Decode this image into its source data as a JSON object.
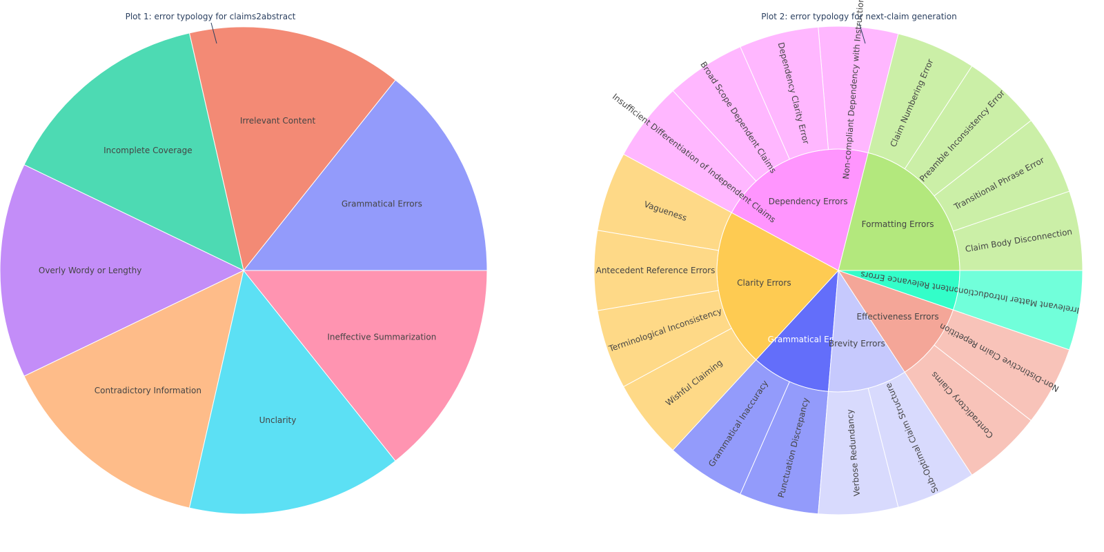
{
  "chart_data": [
    {
      "type": "pie",
      "title": "Plot 1: error typology for claims2abstract",
      "slices": [
        {
          "label": "Grammatical Errors",
          "value": 1,
          "color": "#939bfb"
        },
        {
          "label": "Irrelevant Content",
          "value": 1,
          "color": "#f38a75"
        },
        {
          "label": "Incomplete Coverage",
          "value": 1,
          "color": "#4ddab3"
        },
        {
          "label": "Overly Wordy or Lengthy",
          "value": 1,
          "color": "#c38df8"
        },
        {
          "label": "Contradictory Information",
          "value": 1,
          "color": "#febc89"
        },
        {
          "label": "Unclarity",
          "value": 1,
          "color": "#5ce0f4"
        },
        {
          "label": "Ineffective Summarization",
          "value": 1,
          "color": "#ff94b1"
        }
      ]
    },
    {
      "type": "sunburst",
      "title": "Plot 2: error typology for next-claim generation",
      "categories": [
        {
          "label": "Formatting Errors",
          "color": "#b3e87d",
          "child_color": "#cbefa7",
          "children": [
            "Claim Body Disconnection",
            "Transitional Phrase Error",
            "Preamble Inconsistency Error",
            "Claim Numbering Error"
          ]
        },
        {
          "label": "Dependency Errors",
          "color": "#ff95fe",
          "child_color": "#ffb7ff",
          "children": [
            "Non-compliant Dependency with Instruction",
            "Dependency Clarity Error",
            "Broad Scope Dependent Claims",
            "Insufficient Differentiation of Independent Claims"
          ]
        },
        {
          "label": "Clarity Errors",
          "color": "#fecb52",
          "child_color": "#fed987",
          "children": [
            "Vagueness",
            "Antecedent Reference Errors",
            "Terminological Inconsistency",
            "Wishful Claiming"
          ]
        },
        {
          "label": "Grammatical Errors",
          "color": "#636efa",
          "child_color": "#939bfb",
          "children": [
            "Grammatical Inaccuracy",
            "Punctuation Discrepancy"
          ]
        },
        {
          "label": "Brevity Errors",
          "color": "#c6c9fd",
          "child_color": "#d8dafd",
          "children": [
            "Verbose Redundancy",
            "Sub-Optimal Claim Structure"
          ]
        },
        {
          "label": "Effectiveness Errors",
          "color": "#f4a698",
          "child_color": "#f8c3b9",
          "children": [
            "Contradictory Claims",
            "Non-Distinctive Claim Repetition"
          ]
        },
        {
          "label": "Content Relevance Errors",
          "color": "#33fec9",
          "child_color": "#71ffda",
          "children": [
            "Irrelevant Matter Introduction"
          ]
        }
      ]
    }
  ]
}
